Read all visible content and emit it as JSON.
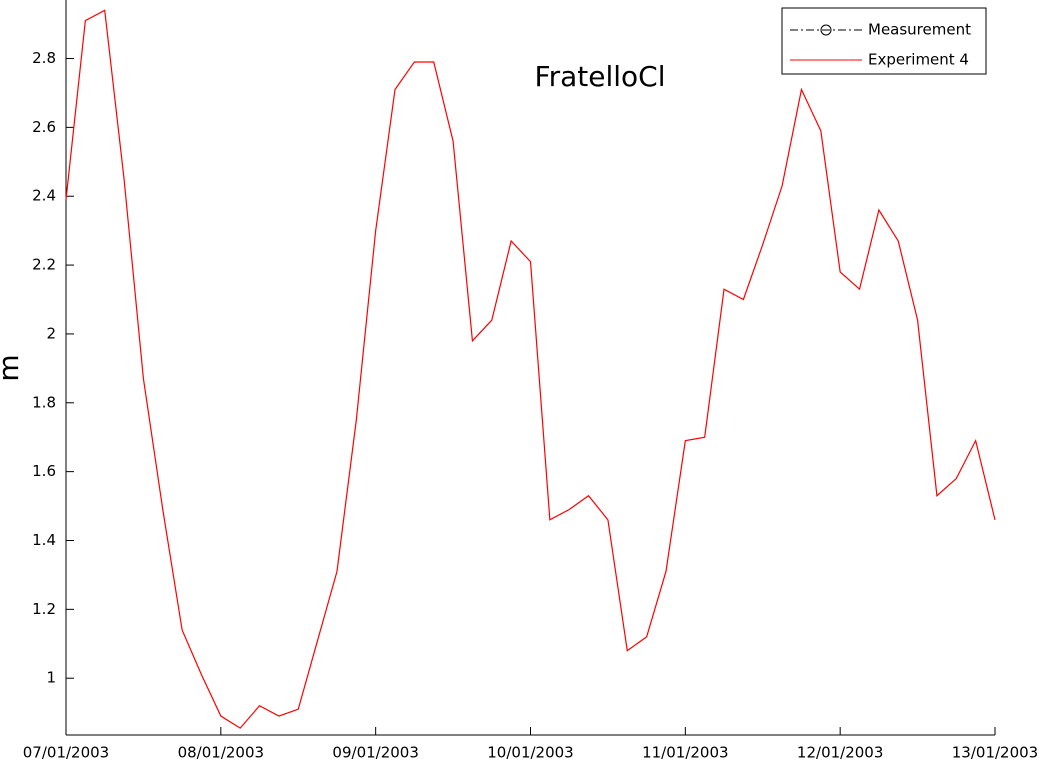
{
  "chart_data": {
    "type": "line",
    "title": "FratelloCl",
    "y_label": "m",
    "x": [
      "2003-01-07T00:00",
      "2003-01-07T03:00",
      "2003-01-07T06:00",
      "2003-01-07T09:00",
      "2003-01-07T12:00",
      "2003-01-07T15:00",
      "2003-01-07T18:00",
      "2003-01-07T21:00",
      "2003-01-08T00:00",
      "2003-01-08T03:00",
      "2003-01-08T06:00",
      "2003-01-08T09:00",
      "2003-01-08T12:00",
      "2003-01-08T15:00",
      "2003-01-08T18:00",
      "2003-01-08T21:00",
      "2003-01-09T00:00",
      "2003-01-09T03:00",
      "2003-01-09T06:00",
      "2003-01-09T09:00",
      "2003-01-09T12:00",
      "2003-01-09T15:00",
      "2003-01-09T18:00",
      "2003-01-09T21:00",
      "2003-01-10T00:00",
      "2003-01-10T03:00",
      "2003-01-10T06:00",
      "2003-01-10T09:00",
      "2003-01-10T12:00",
      "2003-01-10T15:00",
      "2003-01-10T18:00",
      "2003-01-10T21:00",
      "2003-01-11T00:00",
      "2003-01-11T03:00",
      "2003-01-11T06:00",
      "2003-01-11T09:00",
      "2003-01-11T12:00",
      "2003-01-11T15:00",
      "2003-01-11T18:00",
      "2003-01-11T21:00",
      "2003-01-12T00:00",
      "2003-01-12T03:00",
      "2003-01-12T06:00",
      "2003-01-12T09:00",
      "2003-01-12T12:00",
      "2003-01-12T15:00",
      "2003-01-12T18:00",
      "2003-01-12T21:00",
      "2003-01-13T00:00"
    ],
    "series": [
      {
        "name": "Measurement",
        "color": "#000000",
        "line_style": "dash-dot",
        "marker": "circle",
        "values": [
          null,
          null,
          null,
          null,
          null,
          null,
          null,
          null,
          null,
          null,
          null,
          null,
          null,
          null,
          null,
          null,
          null,
          null,
          null,
          null,
          null,
          null,
          null,
          null,
          null,
          null,
          null,
          null,
          null,
          null,
          null,
          null,
          null,
          null,
          null,
          null,
          null,
          null,
          null,
          null,
          null,
          null,
          null,
          null,
          null,
          null,
          null,
          null,
          null
        ]
      },
      {
        "name": "Experiment 4",
        "color": "#ff0000",
        "line_style": "solid",
        "values": [
          2.39,
          2.91,
          2.94,
          2.45,
          1.87,
          1.49,
          1.14,
          1.01,
          0.89,
          0.855,
          0.92,
          0.89,
          0.91,
          1.11,
          1.31,
          1.75,
          2.3,
          2.71,
          2.79,
          2.79,
          2.56,
          1.98,
          2.04,
          2.27,
          2.21,
          1.46,
          1.49,
          1.53,
          1.46,
          1.08,
          1.12,
          1.31,
          1.69,
          1.7,
          2.13,
          2.1,
          2.26,
          2.43,
          2.71,
          2.59,
          2.18,
          2.13,
          2.36,
          2.27,
          2.04,
          1.53,
          1.58,
          1.69,
          1.46
        ]
      }
    ],
    "xlim": [
      "2003-01-07T00:00",
      "2003-01-13T00:00"
    ],
    "xticks": [
      {
        "value": "2003-01-07T00:00",
        "label": "07/01/2003"
      },
      {
        "value": "2003-01-08T00:00",
        "label": "08/01/2003"
      },
      {
        "value": "2003-01-09T00:00",
        "label": "09/01/2003"
      },
      {
        "value": "2003-01-10T00:00",
        "label": "10/01/2003"
      },
      {
        "value": "2003-01-11T00:00",
        "label": "11/01/2003"
      },
      {
        "value": "2003-01-12T00:00",
        "label": "12/01/2003"
      },
      {
        "value": "2003-01-13T00:00",
        "label": "13/01/2003"
      }
    ],
    "ylim": [
      0.835,
      2.97
    ],
    "yticks": [
      1,
      1.2,
      1.4,
      1.6,
      1.8,
      2,
      2.2,
      2.4,
      2.6,
      2.8
    ],
    "grid": false,
    "legend": "top-right"
  }
}
